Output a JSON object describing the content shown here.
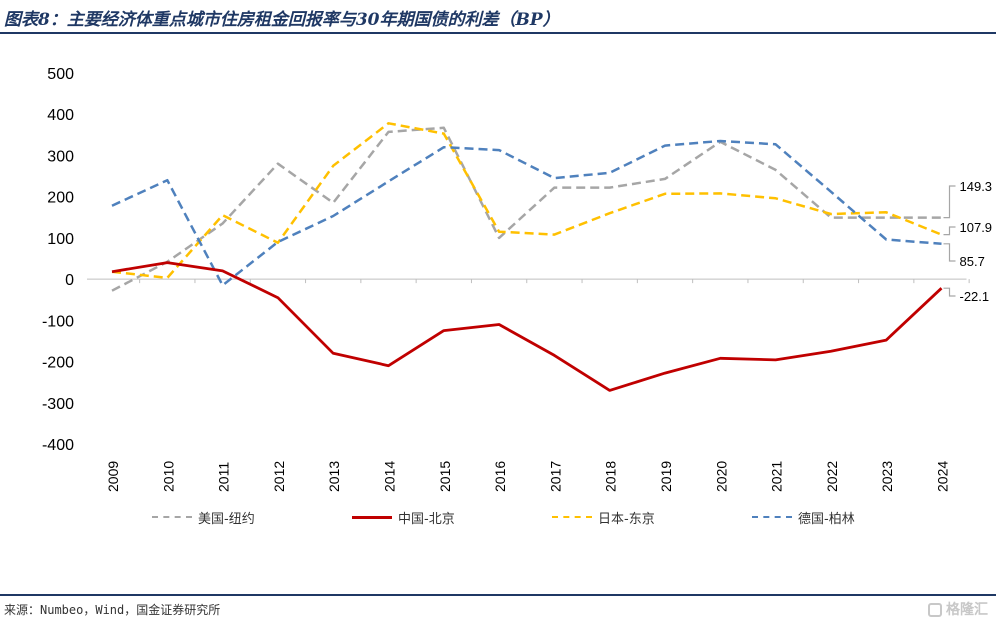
{
  "title": "图表8：主要经济体重点城市住房租金回报率与30年期国债的利差（BP）",
  "source": "来源：Numbeo，Wind，国金证券研究所",
  "watermark": "格隆汇",
  "chart_data": {
    "type": "line",
    "title": "图表8：主要经济体重点城市住房租金回报率与30年期国债的利差（BP）",
    "xlabel": "",
    "ylabel": "",
    "ylim": [
      -400,
      500
    ],
    "yticks": [
      500,
      400,
      300,
      200,
      100,
      0,
      -100,
      -200,
      -300,
      -400
    ],
    "categories": [
      "2009",
      "2010",
      "2011",
      "2012",
      "2013",
      "2014",
      "2015",
      "2016",
      "2017",
      "2018",
      "2019",
      "2020",
      "2021",
      "2022",
      "2023",
      "2024"
    ],
    "legend_position": "bottom",
    "series": [
      {
        "name": "美国-纽约",
        "color": "#a6a6a6",
        "dash": "dashed",
        "values": [
          -28,
          42,
          135,
          280,
          185,
          357,
          367,
          100,
          222,
          222,
          243,
          333,
          265,
          149.3,
          149.3,
          149.3
        ],
        "end_label": "149.3"
      },
      {
        "name": "中国-北京",
        "color": "#c00000",
        "dash": "solid",
        "values": [
          18,
          40,
          20,
          -45,
          -180,
          -210,
          -125,
          -110,
          -185,
          -270,
          -228,
          -192,
          -196,
          -175,
          -148,
          -22.1
        ],
        "end_label": "-22.1"
      },
      {
        "name": "日本-东京",
        "color": "#ffc000",
        "dash": "dashed",
        "values": [
          18,
          3,
          155,
          88,
          275,
          378,
          353,
          115,
          108,
          160,
          207,
          208,
          196,
          158,
          162,
          107.9
        ],
        "end_label": "107.9"
      },
      {
        "name": "德国-柏林",
        "color": "#4f81bd",
        "dash": "dashed",
        "values": [
          178,
          240,
          -15,
          90,
          153,
          237,
          320,
          313,
          245,
          258,
          324,
          335,
          327,
          212,
          96,
          85.7
        ],
        "end_label": "85.7"
      }
    ]
  }
}
